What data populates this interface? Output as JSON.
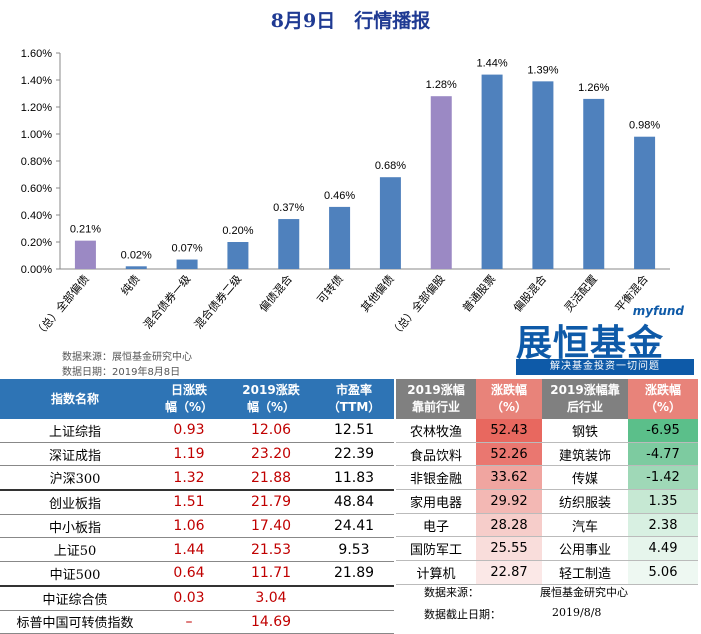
{
  "title": "8月9日　行情播报",
  "source": {
    "line1": "数据来源：展恒基金研究中心",
    "line2": "数据日期：2019年8月8日"
  },
  "logo": {
    "small": "myfund",
    "main": "展恒基金",
    "slogan": "解决基金投资一切问题"
  },
  "colors": {
    "bar_blue": "#4f81bd",
    "bar_purple": "#9b89c4",
    "header_blue": "#2e74b5",
    "header_gray": "#808080",
    "header_pink": "#e8837a"
  },
  "chart_data": {
    "type": "bar",
    "title": "",
    "categories": [
      "（总）全部偏债",
      "纯债",
      "混合债券一级",
      "混合债券二级",
      "偏债混合",
      "可转债",
      "其他偏债",
      "（总）全部偏股",
      "普通股票",
      "偏股混合",
      "灵活配置",
      "平衡混合"
    ],
    "values": [
      0.21,
      0.02,
      0.07,
      0.2,
      0.37,
      0.46,
      0.68,
      1.28,
      1.44,
      1.39,
      1.26,
      0.98
    ],
    "labels": [
      "0.21%",
      "0.02%",
      "0.07%",
      "0.20%",
      "0.37%",
      "0.46%",
      "0.68%",
      "1.28%",
      "1.44%",
      "1.39%",
      "1.26%",
      "0.98%"
    ],
    "highlight": [
      0,
      7
    ],
    "ylim": [
      0,
      1.6
    ],
    "yticks": [
      "0.00%",
      "0.20%",
      "0.40%",
      "0.60%",
      "0.80%",
      "1.00%",
      "1.20%",
      "1.40%",
      "1.60%"
    ],
    "grid": false,
    "legend": "none"
  },
  "index_table": {
    "headers": [
      "指数名称",
      "日涨跌\n幅（%）",
      "2019涨跌\n幅（%）",
      "市盈率\n（TTM）"
    ],
    "rows": [
      {
        "name": "上证综指",
        "day": "0.93",
        "ytd": "12.06",
        "pe": "12.51"
      },
      {
        "name": "深证成指",
        "day": "1.19",
        "ytd": "23.20",
        "pe": "22.39"
      },
      {
        "name": "沪深300",
        "day": "1.32",
        "ytd": "21.88",
        "pe": "11.83"
      },
      {
        "name": "创业板指",
        "day": "1.51",
        "ytd": "21.79",
        "pe": "48.84"
      },
      {
        "name": "中小板指",
        "day": "1.06",
        "ytd": "17.40",
        "pe": "24.41"
      },
      {
        "name": "上证50",
        "day": "1.44",
        "ytd": "21.53",
        "pe": "9.53"
      },
      {
        "name": "中证500",
        "day": "0.64",
        "ytd": "11.71",
        "pe": "21.89"
      },
      {
        "name": "中证综合债",
        "day": "0.03",
        "ytd": "3.04",
        "pe": ""
      },
      {
        "name": "标普中国可转债指数",
        "day": "–",
        "ytd": "14.69",
        "pe": ""
      }
    ]
  },
  "industry_table": {
    "headers": [
      "2019涨幅\n靠前行业",
      "涨跌幅\n（%）",
      "2019涨幅靠\n后行业",
      "涨跌幅\n（%）"
    ],
    "rows": [
      {
        "top": "农林牧渔",
        "top_val": "52.43",
        "bottom": "钢铁",
        "bottom_val": "-6.95"
      },
      {
        "top": "食品饮料",
        "top_val": "52.26",
        "bottom": "建筑装饰",
        "bottom_val": "-4.77"
      },
      {
        "top": "非银金融",
        "top_val": "33.62",
        "bottom": "传媒",
        "bottom_val": "-1.42"
      },
      {
        "top": "家用电器",
        "top_val": "29.92",
        "bottom": "纺织服装",
        "bottom_val": "1.35"
      },
      {
        "top": "电子",
        "top_val": "28.28",
        "bottom": "汽车",
        "bottom_val": "2.38"
      },
      {
        "top": "国防军工",
        "top_val": "25.55",
        "bottom": "公用事业",
        "bottom_val": "4.49"
      },
      {
        "top": "计算机",
        "top_val": "22.87",
        "bottom": "轻工制造",
        "bottom_val": "5.06"
      }
    ],
    "top_colors": [
      "#e8685f",
      "#ea7770",
      "#f0a5a0",
      "#f3b8b4",
      "#f6cdca",
      "#f9dddb",
      "#fbe8e7"
    ],
    "bottom_colors": [
      "#5bbf8a",
      "#7dcba0",
      "#9fd8b7",
      "#c6e8d3",
      "#d8f0e2",
      "#e6f5ec",
      "#eef8f2"
    ]
  },
  "footer": {
    "source_label": "数据来源：",
    "source_value": "展恒基金研究中心",
    "date_label": "数据截止日期：",
    "date_value": "2019/8/8"
  }
}
